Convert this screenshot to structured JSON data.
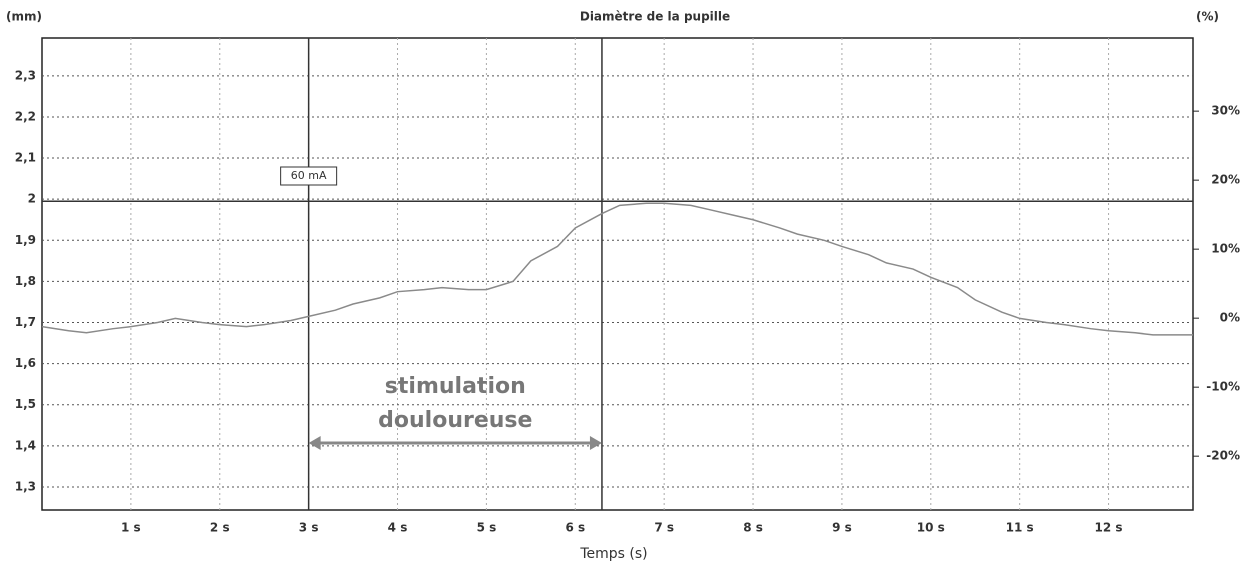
{
  "chart_data": {
    "type": "line",
    "title": "Diamètre de la pupille",
    "ylabel": "(mm)",
    "y2label": "(%)",
    "xlabel": "Temps (s)",
    "x": [
      0,
      0.3,
      0.5,
      0.8,
      1,
      1.3,
      1.5,
      1.8,
      2,
      2.3,
      2.5,
      2.8,
      3,
      3.3,
      3.5,
      3.8,
      4,
      4.3,
      4.5,
      4.8,
      5,
      5.3,
      5.5,
      5.8,
      6,
      6.3,
      6.5,
      6.8,
      7,
      7.3,
      7.5,
      7.8,
      8,
      8.3,
      8.5,
      8.8,
      9,
      9.3,
      9.5,
      9.8,
      10,
      10.3,
      10.5,
      10.8,
      11,
      11.3,
      11.5,
      11.8,
      12,
      12.3,
      12.5,
      12.95
    ],
    "series": [
      {
        "name": "Diamètre de la pupille",
        "color": "#8a8a8a",
        "values": [
          1.69,
          1.68,
          1.675,
          1.685,
          1.69,
          1.7,
          1.71,
          1.7,
          1.695,
          1.69,
          1.695,
          1.705,
          1.715,
          1.73,
          1.745,
          1.76,
          1.775,
          1.78,
          1.785,
          1.78,
          1.78,
          1.8,
          1.85,
          1.885,
          1.93,
          1.965,
          1.985,
          1.99,
          1.99,
          1.985,
          1.975,
          1.96,
          1.95,
          1.93,
          1.915,
          1.9,
          1.885,
          1.865,
          1.845,
          1.83,
          1.81,
          1.785,
          1.755,
          1.725,
          1.71,
          1.7,
          1.695,
          1.685,
          1.68,
          1.675,
          1.67,
          1.67
        ]
      }
    ],
    "xlim": [
      0,
      12.95
    ],
    "xticks": [
      {
        "value": 1,
        "label": "1 s"
      },
      {
        "value": 2,
        "label": "2 s"
      },
      {
        "value": 3,
        "label": "3 s"
      },
      {
        "value": 4,
        "label": "4 s"
      },
      {
        "value": 5,
        "label": "5 s"
      },
      {
        "value": 6,
        "label": "6 s"
      },
      {
        "value": 7,
        "label": "7 s"
      },
      {
        "value": 8,
        "label": "8 s"
      },
      {
        "value": 9,
        "label": "9 s"
      },
      {
        "value": 10,
        "label": "10 s"
      },
      {
        "value": 11,
        "label": "11 s"
      },
      {
        "value": 12,
        "label": "12 s"
      }
    ],
    "ylim": [
      1.244,
      2.392
    ],
    "yticks": [
      {
        "value": 1.3,
        "label": "1,3"
      },
      {
        "value": 1.4,
        "label": "1,4"
      },
      {
        "value": 1.5,
        "label": "1,5"
      },
      {
        "value": 1.6,
        "label": "1,6"
      },
      {
        "value": 1.7,
        "label": "1,7"
      },
      {
        "value": 1.8,
        "label": "1,8"
      },
      {
        "value": 1.9,
        "label": "1,9"
      },
      2,
      {
        "value": 2.1,
        "label": "2,1"
      },
      {
        "value": 2.2,
        "label": "2,2"
      },
      {
        "value": 2.3,
        "label": "2,3"
      }
    ],
    "y2lim": [
      -27.8,
      40.6
    ],
    "y2ticks": [
      {
        "value": -20,
        "label": "-20%"
      },
      {
        "value": -10,
        "label": "-10%"
      },
      {
        "value": 0,
        "label": "0%"
      },
      {
        "value": 10,
        "label": "10%"
      },
      {
        "value": 20,
        "label": "20%"
      },
      {
        "value": 30,
        "label": "30%"
      }
    ],
    "grid": true,
    "vlines": [
      3,
      6.3
    ],
    "hline": 1.995,
    "stimulus_label": "60 mA",
    "annotation": [
      "stimulation",
      "douloureuse"
    ]
  }
}
